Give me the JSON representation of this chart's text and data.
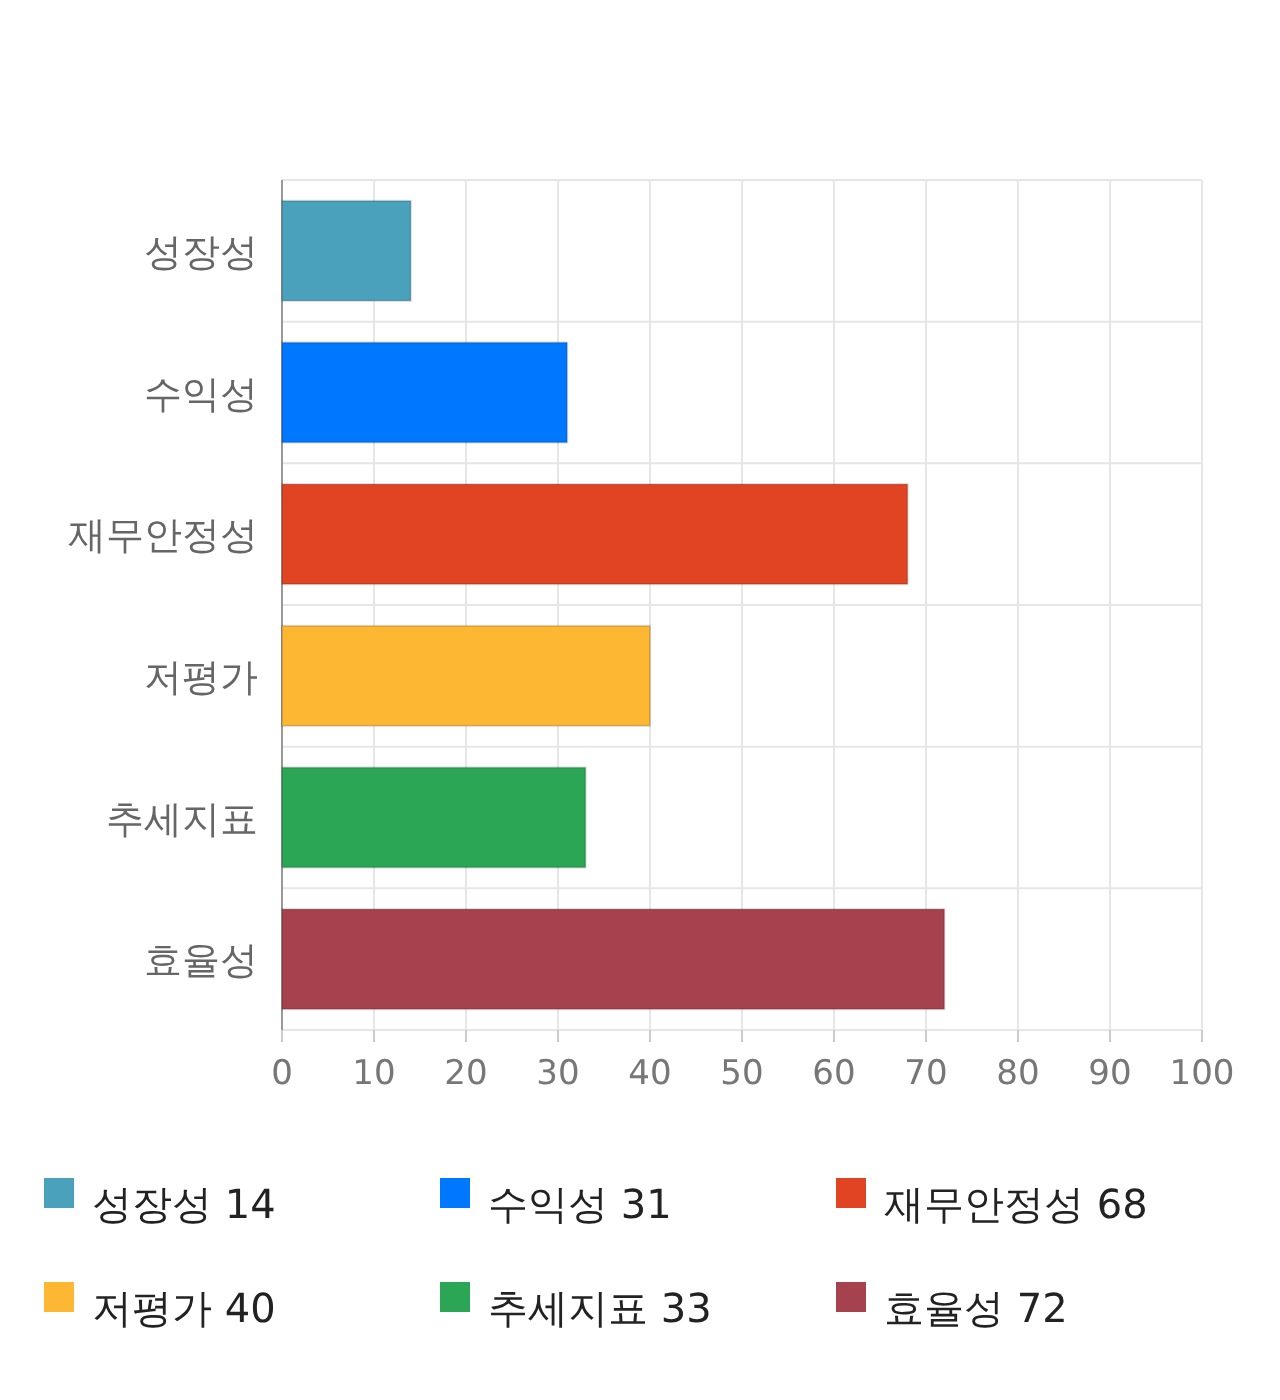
{
  "chart_data": {
    "type": "bar",
    "orientation": "horizontal",
    "stacked": true,
    "categories": [
      "성장성",
      "수익성",
      "재무안정성",
      "저평가",
      "추세지표",
      "효율성"
    ],
    "series": [
      {
        "name": "성장성 14",
        "color": "#4aa1bb",
        "values": [
          14,
          null,
          null,
          null,
          null,
          null
        ]
      },
      {
        "name": "수익성 31",
        "color": "#0077ff",
        "values": [
          null,
          31,
          null,
          null,
          null,
          null
        ]
      },
      {
        "name": "재무안정성 68",
        "color": "#e04422",
        "values": [
          null,
          null,
          68,
          null,
          null,
          null
        ]
      },
      {
        "name": "저평가 40",
        "color": "#fdb733",
        "values": [
          null,
          null,
          null,
          40,
          null,
          null
        ]
      },
      {
        "name": "추세지표 33",
        "color": "#2aa655",
        "values": [
          null,
          null,
          null,
          null,
          33,
          null
        ]
      },
      {
        "name": "효율성 72",
        "color": "#a6414e",
        "values": [
          null,
          null,
          null,
          null,
          null,
          72
        ]
      }
    ],
    "xlim": [
      0,
      100
    ],
    "xticks": [
      0,
      10,
      20,
      30,
      40,
      50,
      60,
      70,
      80,
      90,
      100
    ],
    "grid": true,
    "legend": "bottom"
  }
}
